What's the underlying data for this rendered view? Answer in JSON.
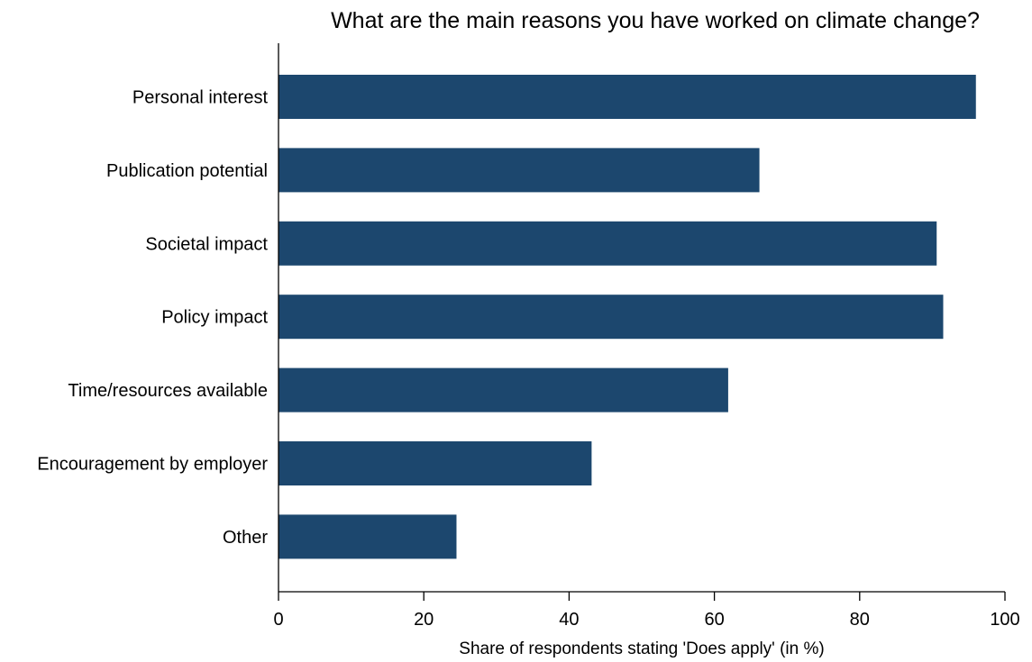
{
  "chart_data": {
    "type": "bar",
    "orientation": "horizontal",
    "title": "What are the main reasons you have worked on climate change?",
    "xlabel": "Share of respondents stating 'Does apply' (in %)",
    "ylabel": "",
    "xlim": [
      0,
      100
    ],
    "xticks": [
      0,
      20,
      40,
      60,
      80,
      100
    ],
    "grid": false,
    "categories": [
      "Personal interest",
      "Publication potential",
      "Societal impact",
      "Policy impact",
      "Time/resources available",
      "Encouragement by employer",
      "Other"
    ],
    "values": [
      96,
      66.2,
      90.6,
      91.5,
      61.9,
      43.1,
      24.5
    ],
    "bar_color": "#1c476e"
  }
}
